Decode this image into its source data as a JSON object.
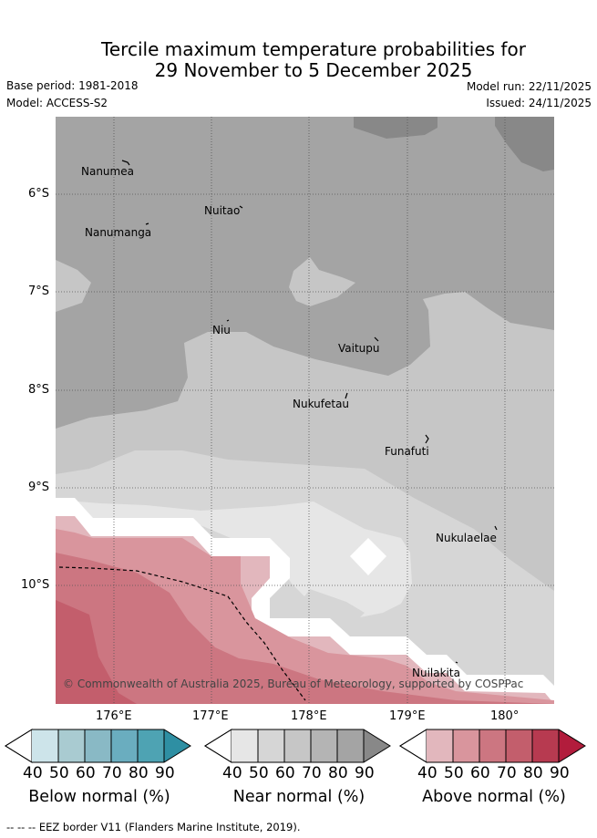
{
  "header": {
    "title_line1": "Tercile maximum temperature probabilities for",
    "title_line2": "29 November to 5 December 2025",
    "base_period": "Base period: 1981-2018",
    "model": "Model: ACCESS-S2",
    "model_run": "Model run: 22/11/2025",
    "issued": "Issued: 24/11/2025"
  },
  "map": {
    "lat_labels": [
      "6°S",
      "7°S",
      "8°S",
      "9°S",
      "10°S"
    ],
    "lon_labels": [
      "176°E",
      "177°E",
      "178°E",
      "179°E",
      "180°"
    ],
    "places": [
      {
        "name": "Nanumea"
      },
      {
        "name": "Nuitao"
      },
      {
        "name": "Nanumanga"
      },
      {
        "name": "Niu"
      },
      {
        "name": "Vaitupu"
      },
      {
        "name": "Nukufetau"
      },
      {
        "name": "Funafuti"
      },
      {
        "name": "Nukulaelae"
      },
      {
        "name": "Nuilakita"
      }
    ],
    "copyright": "© Commonwealth of Australia 2025, Bureau of Meteorology, supported by COSPPac"
  },
  "legend": {
    "ticks": [
      "40",
      "50",
      "60",
      "70",
      "80",
      "90"
    ],
    "below": {
      "title": "Below normal (%)",
      "colors": [
        "#cde4ea",
        "#a9cbd1",
        "#89b9c5",
        "#6aadbf",
        "#4ea3b3",
        "#2e8fa3"
      ]
    },
    "near": {
      "title": "Near normal (%)",
      "colors": [
        "#e6e6e6",
        "#d6d6d6",
        "#c6c6c6",
        "#b4b4b4",
        "#a4a4a4",
        "#888888"
      ]
    },
    "above": {
      "title": "Above normal (%)",
      "colors": [
        "#e2b7bd",
        "#d9959d",
        "#cc7681",
        "#c35e6c",
        "#b73a50",
        "#b21c3c"
      ]
    }
  },
  "footer": {
    "eez_note": "-- -- -- EEZ border V11 (Flanders Marine Institute, 2019)."
  }
}
